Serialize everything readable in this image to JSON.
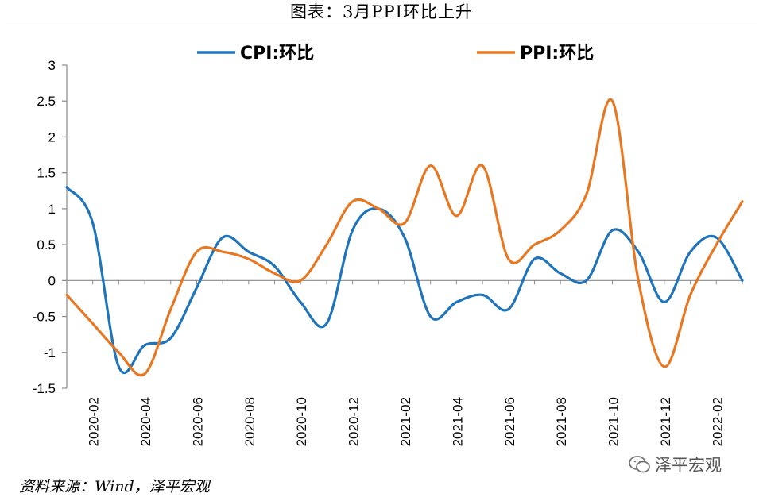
{
  "title": "图表：3月PPI环比上升",
  "source": "资料来源：Wind，泽平宏观",
  "watermark": "泽平宏观",
  "watermark_icon": "wechat-icon",
  "chart_data": {
    "type": "line",
    "title": "图表：3月PPI环比上升",
    "xlabel": "",
    "ylabel": "",
    "ylim": [
      -1.5,
      3
    ],
    "yticks": [
      3,
      2.5,
      2,
      1.5,
      1,
      0.5,
      0,
      -0.5,
      -1,
      -1.5
    ],
    "ytick_labels": [
      "3",
      "2.5",
      "2",
      "1.5",
      "1",
      "0.5",
      "0",
      "-0.5",
      "-1",
      "-1.5"
    ],
    "x": [
      "2020-01",
      "2020-02",
      "2020-03",
      "2020-04",
      "2020-05",
      "2020-06",
      "2020-07",
      "2020-08",
      "2020-09",
      "2020-10",
      "2020-11",
      "2020-12",
      "2021-01",
      "2021-02",
      "2021-03",
      "2021-04",
      "2021-05",
      "2021-06",
      "2021-07",
      "2021-08",
      "2021-09",
      "2021-10",
      "2021-11",
      "2021-12",
      "2022-01",
      "2022-02",
      "2022-03"
    ],
    "xtick_labels": [
      "2020-02",
      "2020-04",
      "2020-06",
      "2020-08",
      "2020-10",
      "2020-12",
      "2021-02",
      "2021-04",
      "2021-06",
      "2021-08",
      "2021-10",
      "2021-12",
      "2022-02"
    ],
    "xtick_indices": [
      1,
      3,
      5,
      7,
      9,
      11,
      13,
      15,
      17,
      19,
      21,
      23,
      25
    ],
    "grid": false,
    "legend": "top",
    "series": [
      {
        "name": "CPI:环比",
        "color": "#1f74bb",
        "values": [
          1.3,
          0.8,
          -1.2,
          -0.9,
          -0.8,
          -0.1,
          0.6,
          0.4,
          0.2,
          -0.3,
          -0.6,
          0.7,
          1.0,
          0.6,
          -0.5,
          -0.3,
          -0.2,
          -0.4,
          0.3,
          0.1,
          0.0,
          0.7,
          0.4,
          -0.3,
          0.4,
          0.6,
          0.0
        ]
      },
      {
        "name": "PPI:环比",
        "color": "#e87722",
        "values": [
          -0.2,
          -0.6,
          -1.0,
          -1.3,
          -0.4,
          0.4,
          0.4,
          0.3,
          0.1,
          0.0,
          0.5,
          1.1,
          1.0,
          0.8,
          1.6,
          0.9,
          1.6,
          0.3,
          0.5,
          0.7,
          1.2,
          2.5,
          0.0,
          -1.2,
          -0.2,
          0.5,
          1.1
        ]
      }
    ]
  }
}
